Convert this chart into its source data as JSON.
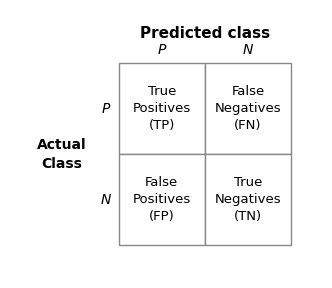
{
  "title": "Predicted class",
  "col_labels": [
    "P",
    "N"
  ],
  "row_labels": [
    "P",
    "N"
  ],
  "y_axis_label_line1": "Actual",
  "y_axis_label_line2": "Class",
  "cells": [
    [
      "True\nPositives\n(TP)",
      "False\nNegatives\n(FN)"
    ],
    [
      "False\nPositives\n(FP)",
      "True\nNegatives\n(TN)"
    ]
  ],
  "background_color": "#ffffff",
  "cell_bg_color": "#ffffff",
  "cell_edge_color": "#888888",
  "text_color": "#000000",
  "title_fontsize": 11,
  "label_fontsize": 10,
  "cell_fontsize": 9.5,
  "axis_label_fontsize": 10
}
